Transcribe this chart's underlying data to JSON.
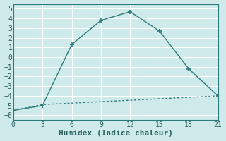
{
  "line1_x": [
    0,
    3,
    6,
    9,
    12,
    15,
    18,
    21
  ],
  "line1_y": [
    -5.5,
    -5.0,
    1.3,
    3.8,
    4.7,
    2.7,
    -1.2,
    -4.0
  ],
  "line2_x": [
    0,
    3,
    6,
    9,
    12,
    15,
    18,
    21
  ],
  "line2_y": [
    -5.5,
    -4.9,
    -4.75,
    -4.6,
    -4.45,
    -4.3,
    -4.15,
    -4.0
  ],
  "line_color": "#2d7a7a",
  "bg_color": "#ceeaea",
  "grid_color": "#ffffff",
  "xlabel": "Humidex (Indice chaleur)",
  "ylim": [
    -6.5,
    5.5
  ],
  "xlim": [
    0,
    21
  ],
  "xticks": [
    0,
    3,
    6,
    9,
    12,
    15,
    18,
    21
  ],
  "yticks": [
    -6,
    -5,
    -4,
    -3,
    -2,
    -1,
    0,
    1,
    2,
    3,
    4,
    5
  ],
  "xlabel_fontsize": 8,
  "tick_fontsize": 7,
  "tick_color": "#2d6060"
}
